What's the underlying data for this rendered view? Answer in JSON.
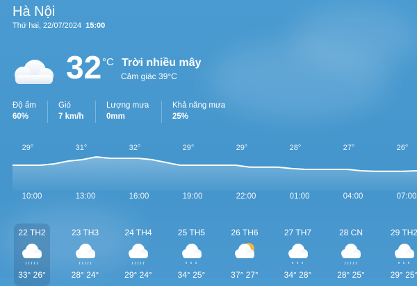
{
  "location": {
    "city": "Hà Nội",
    "date": "Thứ hai, 22/07/2024",
    "time": "15:00"
  },
  "current": {
    "icon": "cloud-icon",
    "temperature": "32",
    "unit": "°C",
    "condition": "Trời nhiều mây",
    "feels_like": "Cảm giác 39°C"
  },
  "stats": [
    {
      "label": "Độ ẩm",
      "value": "60%"
    },
    {
      "label": "Gió",
      "value": "7 km/h"
    },
    {
      "label": "Lượng mưa",
      "value": "0mm"
    },
    {
      "label": "Khả năng mưa",
      "value": "25%"
    }
  ],
  "hourly": {
    "slots": [
      {
        "time": "10:00",
        "temp": "29°"
      },
      {
        "time": "13:00",
        "temp": "31°"
      },
      {
        "time": "16:00",
        "temp": "32°"
      },
      {
        "time": "19:00",
        "temp": "29°"
      },
      {
        "time": "22:00",
        "temp": "29°"
      },
      {
        "time": "01:00",
        "temp": "28°"
      },
      {
        "time": "04:00",
        "temp": "27°"
      },
      {
        "time": "07:00",
        "temp": "26°"
      }
    ],
    "line_values": [
      29,
      29,
      29,
      29.5,
      30.5,
      31,
      32,
      31.5,
      31.5,
      31.5,
      31,
      30,
      29,
      29,
      29,
      29,
      29,
      28.3,
      28.3,
      28.3,
      27.8,
      27.5,
      27.5,
      27.5,
      27.5,
      27,
      26.8,
      26.8,
      26.8,
      27
    ]
  },
  "daily": [
    {
      "label": "22 TH2",
      "icon": "cloud-rain-icon",
      "range": "33° 26°",
      "selected": true
    },
    {
      "label": "23 TH3",
      "icon": "cloud-rain-icon",
      "range": "28° 24°"
    },
    {
      "label": "24 TH4",
      "icon": "cloud-rain-icon",
      "range": "29° 24°"
    },
    {
      "label": "25 TH5",
      "icon": "cloud-drizzle-icon",
      "range": "34° 25°"
    },
    {
      "label": "26 TH6",
      "icon": "sun-cloud-icon",
      "range": "37° 27°"
    },
    {
      "label": "27 TH7",
      "icon": "cloud-drizzle-icon",
      "range": "34° 28°"
    },
    {
      "label": "28 CN",
      "icon": "cloud-rain-icon",
      "range": "28° 25°"
    },
    {
      "label": "29 TH2",
      "icon": "cloud-drizzle-icon",
      "range": "29° 25°"
    }
  ]
}
